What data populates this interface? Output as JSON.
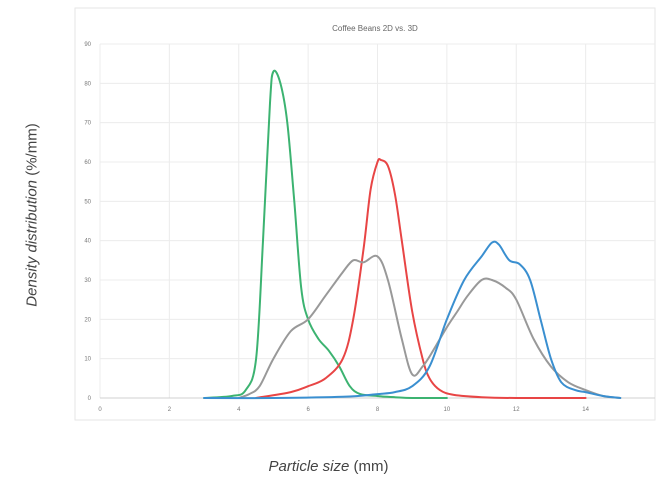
{
  "chart_data": {
    "type": "line",
    "title": "Coffee Beans 2D vs. 3D",
    "xlabel_italic": "Particle size",
    "xlabel_unit": "(mm)",
    "ylabel_italic": "Density distribution",
    "ylabel_unit": "(%/mm)",
    "xlim": [
      0,
      16
    ],
    "ylim": [
      0,
      90
    ],
    "xticks": [
      "0",
      "2",
      "4",
      "6",
      "8",
      "10",
      "12",
      "14"
    ],
    "yticks": [
      "0",
      "10",
      "20",
      "30",
      "40",
      "50",
      "60",
      "70",
      "80",
      "90"
    ],
    "grid": true,
    "series": [
      {
        "color": "#3cb371",
        "x": [
          3.0,
          3.8,
          4.2,
          4.5,
          4.7,
          4.9,
          5.0,
          5.2,
          5.4,
          5.6,
          5.8,
          6.0,
          6.3,
          6.6,
          6.9,
          7.2,
          7.5,
          8.0,
          8.5,
          9.0,
          10.0
        ],
        "y": [
          0,
          0.5,
          2,
          10,
          40,
          75,
          83,
          80,
          70,
          50,
          28,
          20,
          15,
          12,
          8,
          3,
          1,
          0.5,
          0.2,
          0,
          0
        ]
      },
      {
        "color": "#e84545",
        "x": [
          4.5,
          5.5,
          6.0,
          6.5,
          7.0,
          7.3,
          7.6,
          7.8,
          8.0,
          8.1,
          8.3,
          8.5,
          8.7,
          9.0,
          9.3,
          9.5,
          9.8,
          10.2,
          11.0,
          12.0,
          14.0
        ],
        "y": [
          0,
          1.5,
          3,
          5,
          10,
          20,
          38,
          53,
          60,
          60.5,
          59,
          52,
          40,
          22,
          10,
          5,
          2,
          0.8,
          0.2,
          0,
          0
        ]
      },
      {
        "color": "#999999",
        "x": [
          4.0,
          4.3,
          4.6,
          5.0,
          5.5,
          6.0,
          6.5,
          7.0,
          7.3,
          7.6,
          8.0,
          8.3,
          8.7,
          9.0,
          9.3,
          9.6,
          10.0,
          10.3,
          10.6,
          11.0,
          11.3,
          11.7,
          12.0,
          12.5,
          13.0,
          13.5,
          14.0,
          14.5,
          15.0
        ],
        "y": [
          0,
          1,
          3,
          10,
          17,
          20,
          26,
          32,
          35,
          34.5,
          36,
          30,
          15,
          6,
          8,
          12,
          18,
          22,
          26,
          30,
          30,
          28,
          25,
          15,
          8,
          4,
          2,
          0.5,
          0
        ]
      },
      {
        "color": "#3a8fd0",
        "x": [
          3.0,
          5.0,
          7.0,
          8.0,
          8.5,
          9.0,
          9.5,
          10.0,
          10.5,
          11.0,
          11.3,
          11.5,
          11.8,
          12.1,
          12.4,
          12.7,
          13.0,
          13.3,
          13.7,
          14.0,
          14.5,
          15.0
        ],
        "y": [
          0,
          0,
          0.3,
          1,
          1.5,
          3,
          8,
          20,
          30,
          36,
          39.5,
          39,
          35,
          34,
          30,
          20,
          10,
          4,
          2,
          1.5,
          0.5,
          0
        ]
      }
    ]
  }
}
